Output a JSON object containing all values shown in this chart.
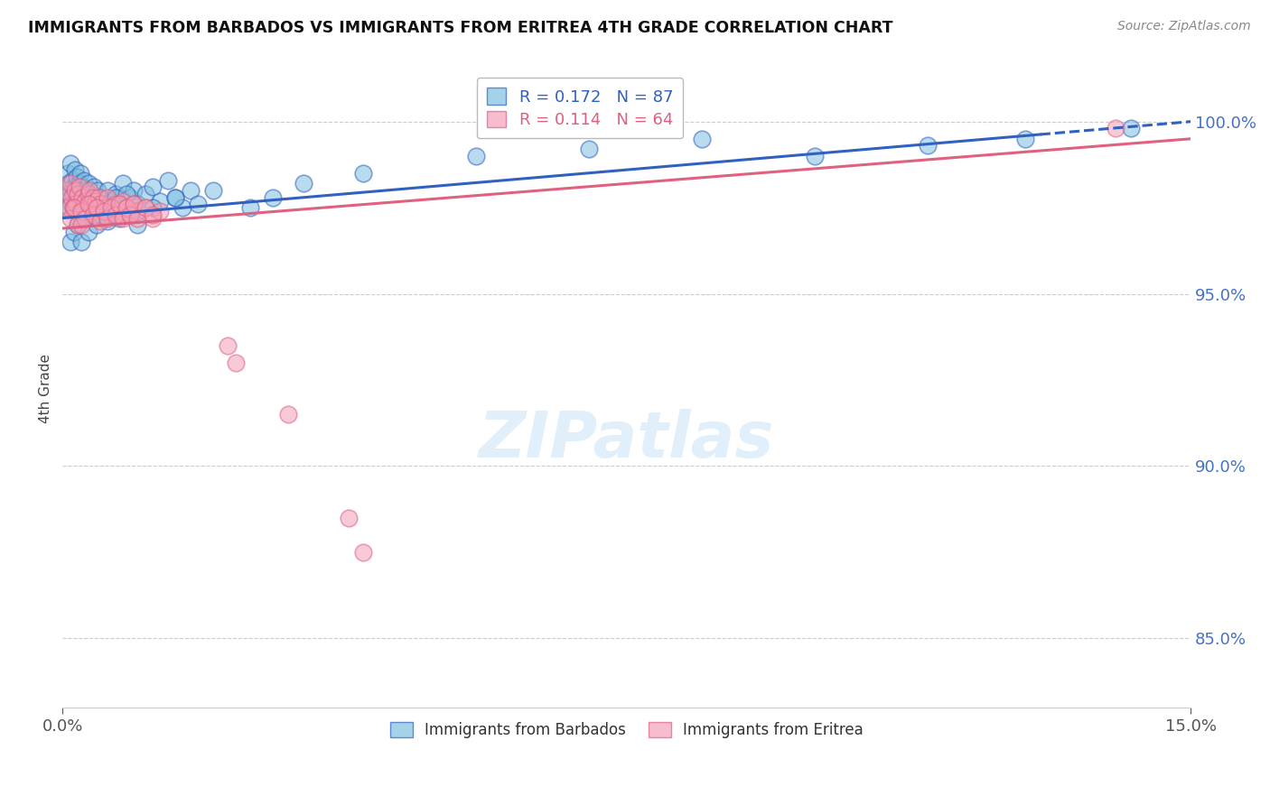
{
  "title": "IMMIGRANTS FROM BARBADOS VS IMMIGRANTS FROM ERITREA 4TH GRADE CORRELATION CHART",
  "source": "Source: ZipAtlas.com",
  "ylabel": "4th Grade",
  "xlim": [
    0.0,
    15.0
  ],
  "ylim": [
    83.0,
    101.5
  ],
  "yticks": [
    85.0,
    90.0,
    95.0,
    100.0
  ],
  "ytick_labels": [
    "85.0%",
    "90.0%",
    "95.0%",
    "100.0%"
  ],
  "xticks": [
    0.0,
    15.0
  ],
  "xtick_labels": [
    "0.0%",
    "15.0%"
  ],
  "R_barbados": 0.172,
  "N_barbados": 87,
  "R_eritrea": 0.114,
  "N_eritrea": 64,
  "color_barbados": "#7fbfdf",
  "color_eritrea": "#f4a0b8",
  "line_color_barbados": "#3060c0",
  "line_color_eritrea": "#e06080",
  "legend_label_barbados": "Immigrants from Barbados",
  "legend_label_eritrea": "Immigrants from Eritrea",
  "barbados_x": [
    0.05,
    0.07,
    0.08,
    0.09,
    0.1,
    0.11,
    0.12,
    0.13,
    0.14,
    0.15,
    0.16,
    0.17,
    0.18,
    0.19,
    0.2,
    0.21,
    0.22,
    0.23,
    0.24,
    0.25,
    0.26,
    0.27,
    0.28,
    0.29,
    0.3,
    0.32,
    0.34,
    0.36,
    0.38,
    0.4,
    0.42,
    0.44,
    0.46,
    0.48,
    0.5,
    0.55,
    0.6,
    0.65,
    0.7,
    0.75,
    0.8,
    0.85,
    0.9,
    0.95,
    1.0,
    1.1,
    1.2,
    1.3,
    1.4,
    1.5,
    1.6,
    1.7,
    1.8,
    0.1,
    0.15,
    0.2,
    0.25,
    0.3,
    0.35,
    0.4,
    0.45,
    0.5,
    0.55,
    0.6,
    0.65,
    0.7,
    0.75,
    0.8,
    0.85,
    0.9,
    1.0,
    1.2,
    1.5,
    2.0,
    2.5,
    2.8,
    3.2,
    4.0,
    5.5,
    7.0,
    8.5,
    10.0,
    11.5,
    12.8,
    14.2,
    0.05,
    0.3
  ],
  "barbados_y": [
    97.8,
    98.5,
    98.2,
    97.5,
    98.8,
    98.0,
    97.6,
    98.3,
    97.9,
    98.1,
    97.4,
    98.6,
    97.7,
    98.4,
    98.0,
    97.5,
    98.2,
    97.8,
    98.5,
    97.3,
    98.1,
    97.6,
    97.9,
    98.3,
    98.0,
    97.8,
    98.2,
    97.5,
    97.9,
    97.7,
    98.1,
    97.4,
    98.0,
    97.6,
    97.8,
    97.5,
    98.0,
    97.7,
    97.9,
    97.6,
    98.2,
    97.5,
    97.8,
    98.0,
    97.6,
    97.9,
    98.1,
    97.7,
    98.3,
    97.8,
    97.5,
    98.0,
    97.6,
    96.5,
    96.8,
    97.0,
    96.5,
    97.2,
    96.8,
    97.5,
    97.0,
    97.3,
    97.6,
    97.1,
    97.4,
    97.8,
    97.2,
    97.5,
    97.9,
    97.3,
    97.0,
    97.5,
    97.8,
    98.0,
    97.5,
    97.8,
    98.2,
    98.5,
    99.0,
    99.2,
    99.5,
    99.0,
    99.3,
    99.5,
    99.8,
    97.5,
    97.2
  ],
  "eritrea_x": [
    0.05,
    0.08,
    0.1,
    0.12,
    0.14,
    0.16,
    0.18,
    0.2,
    0.22,
    0.24,
    0.26,
    0.28,
    0.3,
    0.32,
    0.34,
    0.36,
    0.38,
    0.4,
    0.42,
    0.44,
    0.46,
    0.48,
    0.5,
    0.55,
    0.6,
    0.65,
    0.7,
    0.75,
    0.8,
    0.85,
    0.9,
    0.95,
    1.0,
    1.1,
    1.2,
    1.3,
    2.2,
    2.3,
    3.0,
    3.8,
    4.0,
    0.1,
    0.15,
    0.2,
    0.25,
    0.3,
    0.35,
    0.4,
    0.45,
    0.5,
    0.55,
    0.6,
    0.65,
    0.7,
    0.75,
    0.8,
    0.85,
    0.9,
    0.95,
    1.0,
    1.1,
    1.2,
    14.0,
    0.25
  ],
  "eritrea_y": [
    98.0,
    97.5,
    98.2,
    97.8,
    97.5,
    98.0,
    97.6,
    97.9,
    98.1,
    97.4,
    97.8,
    97.5,
    97.7,
    97.3,
    97.9,
    98.0,
    97.6,
    97.8,
    97.4,
    97.7,
    97.5,
    97.8,
    97.6,
    97.5,
    97.8,
    97.3,
    97.6,
    97.4,
    97.7,
    97.5,
    97.3,
    97.6,
    97.4,
    97.5,
    97.2,
    97.4,
    93.5,
    93.0,
    91.5,
    88.5,
    87.5,
    97.2,
    97.5,
    97.0,
    97.4,
    97.2,
    97.6,
    97.3,
    97.5,
    97.1,
    97.4,
    97.2,
    97.5,
    97.3,
    97.6,
    97.2,
    97.5,
    97.3,
    97.6,
    97.2,
    97.5,
    97.3,
    99.8,
    97.0
  ],
  "trendline_barbados_x0": 0.0,
  "trendline_barbados_y0": 97.2,
  "trendline_barbados_x1": 15.0,
  "trendline_barbados_y1": 100.0,
  "trendline_eritrea_x0": 0.0,
  "trendline_eritrea_y0": 96.9,
  "trendline_eritrea_x1": 15.0,
  "trendline_eritrea_y1": 99.5,
  "trendline_barbados_solid_end": 13.0
}
